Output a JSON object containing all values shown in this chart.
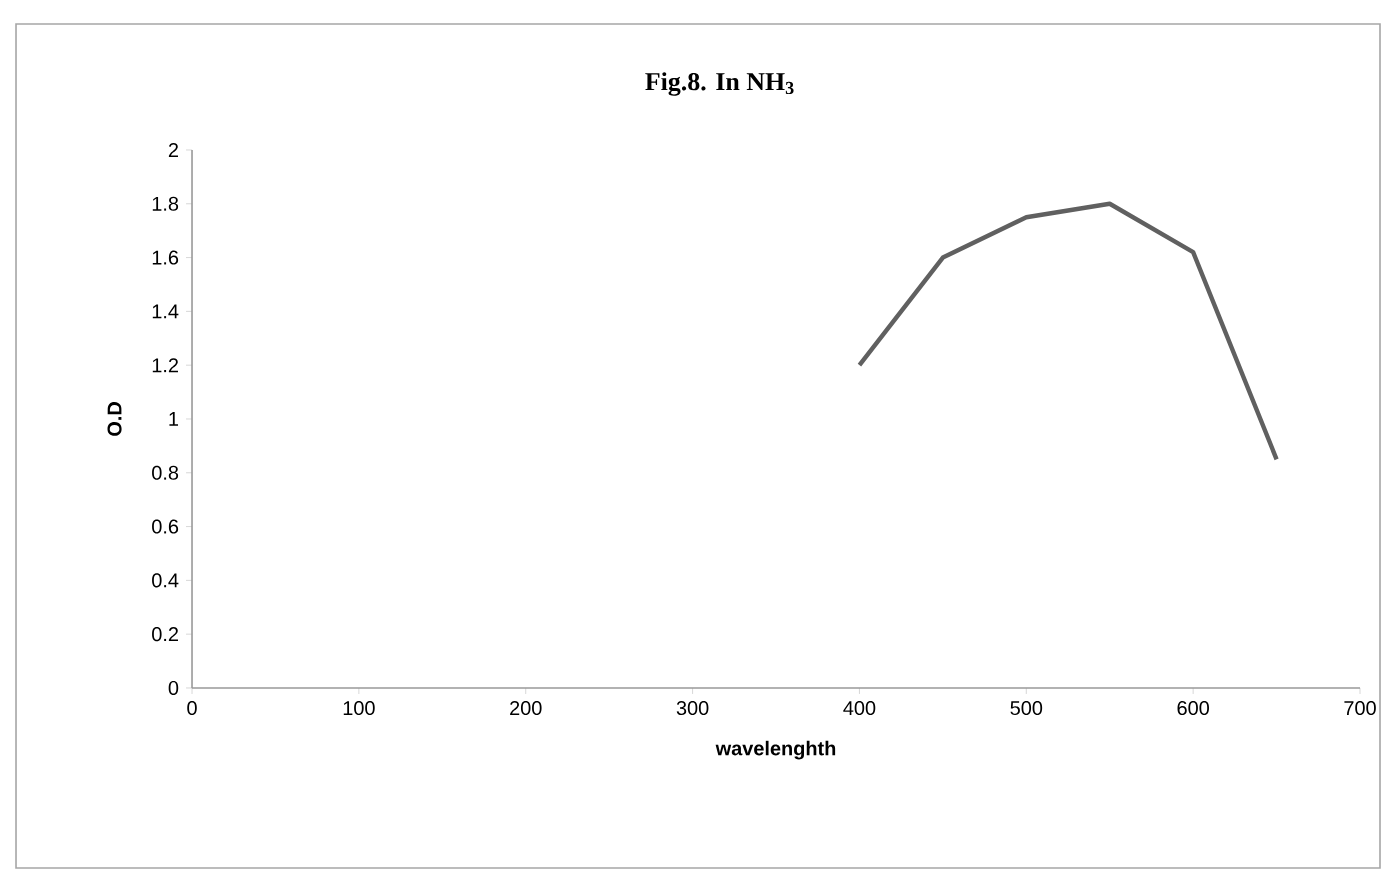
{
  "chart_data": {
    "type": "line",
    "title": "Fig.8. In NH$_{3}$",
    "xlabel": "wavelenghth",
    "ylabel": "O.D",
    "x": [
      400,
      450,
      500,
      550,
      600,
      650
    ],
    "series": [
      {
        "color": "#606060",
        "values": [
          1.2,
          1.6,
          1.75,
          1.8,
          1.62,
          0.85
        ]
      }
    ],
    "xlim": [
      0,
      700
    ],
    "xticks": [
      0,
      100,
      200,
      300,
      400,
      500,
      600,
      700
    ],
    "ylim": [
      0,
      2
    ],
    "yticks": [
      0,
      0.2,
      0.4,
      0.6,
      0.8,
      1,
      1.2,
      1.4,
      1.6,
      1.8,
      2
    ],
    "grid": false,
    "legend": false,
    "marker": "none",
    "line_style": "solid"
  }
}
